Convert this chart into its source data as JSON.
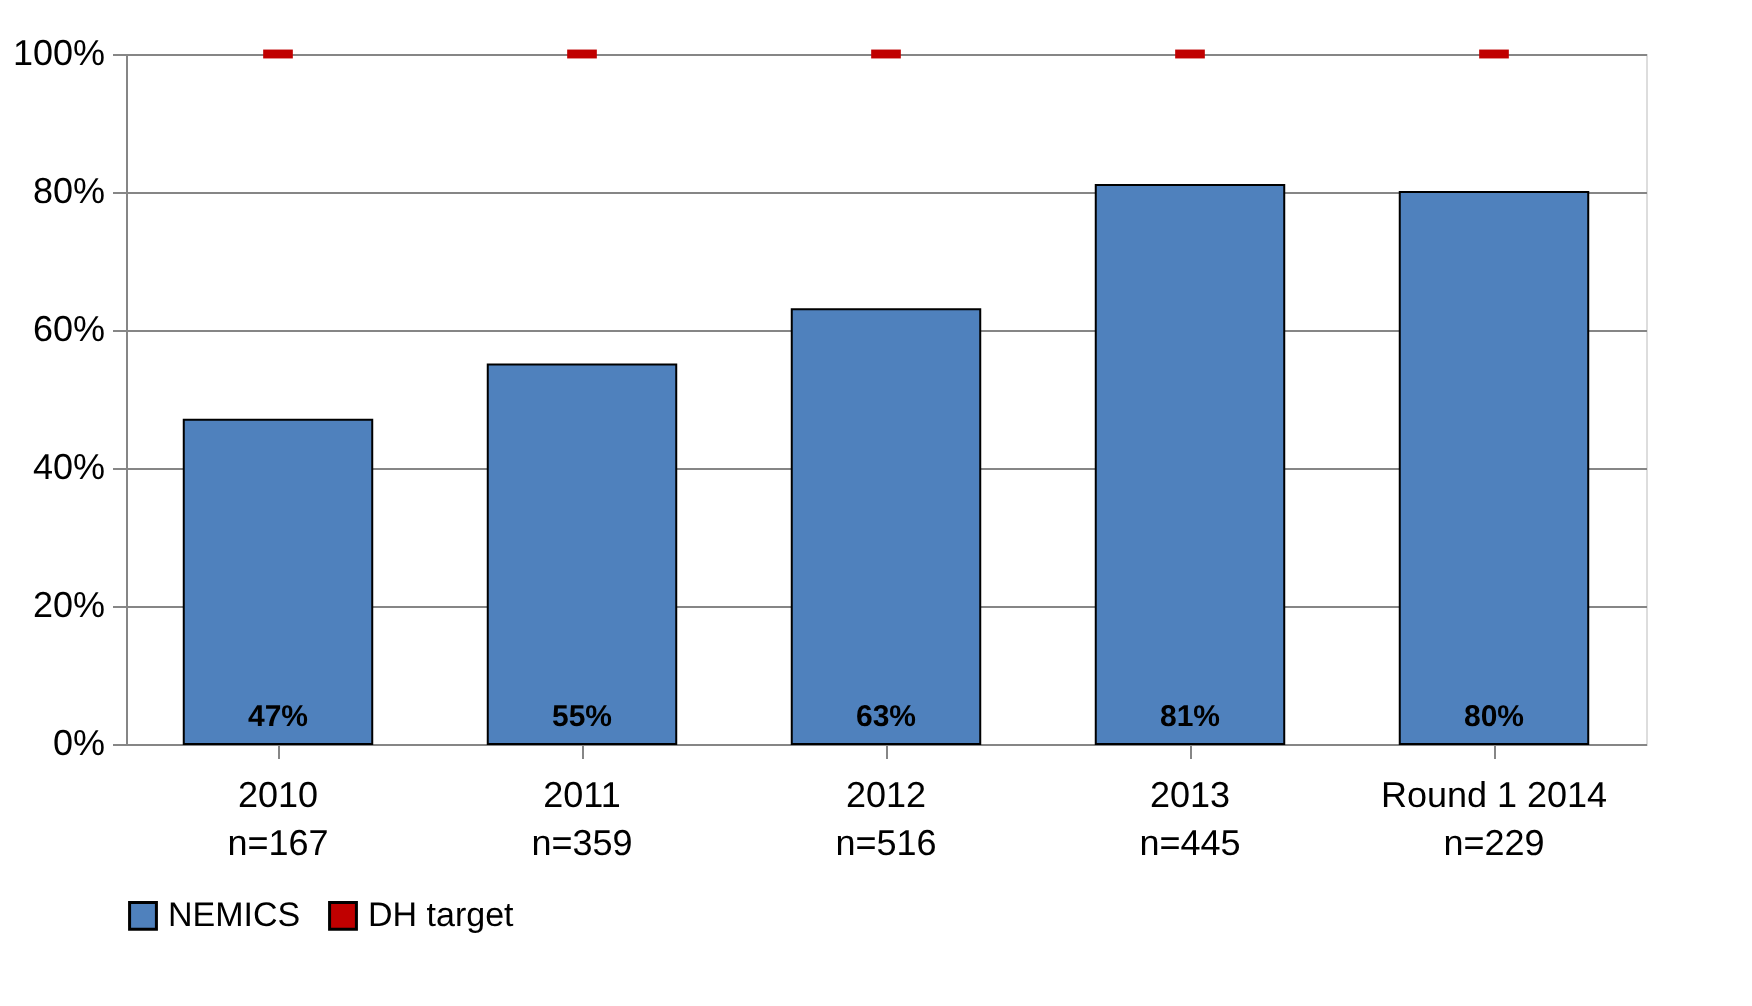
{
  "chart_data": {
    "type": "bar",
    "categories": [
      "2010\nn=167",
      "2011\nn=359",
      "2012\nn=516",
      "2013\nn=445",
      "Round 1 2014\nn=229"
    ],
    "series": [
      {
        "name": "NEMICS",
        "color": "#4f81bd",
        "values": [
          47,
          55,
          63,
          81,
          80
        ]
      },
      {
        "name": "DH target",
        "type": "scatter",
        "color": "#c00000",
        "values": [
          100,
          100,
          100,
          100,
          100
        ]
      }
    ],
    "ylim": [
      0,
      100
    ],
    "yticks": [
      {
        "value": 0,
        "label": "0%"
      },
      {
        "value": 20,
        "label": "20%"
      },
      {
        "value": 40,
        "label": "40%"
      },
      {
        "value": 60,
        "label": "60%"
      },
      {
        "value": 80,
        "label": "80%"
      },
      {
        "value": 100,
        "label": "100%"
      }
    ],
    "value_labels": [
      "47%",
      "55%",
      "63%",
      "81%",
      "80%"
    ],
    "grid": "y",
    "legend": "bottom"
  }
}
